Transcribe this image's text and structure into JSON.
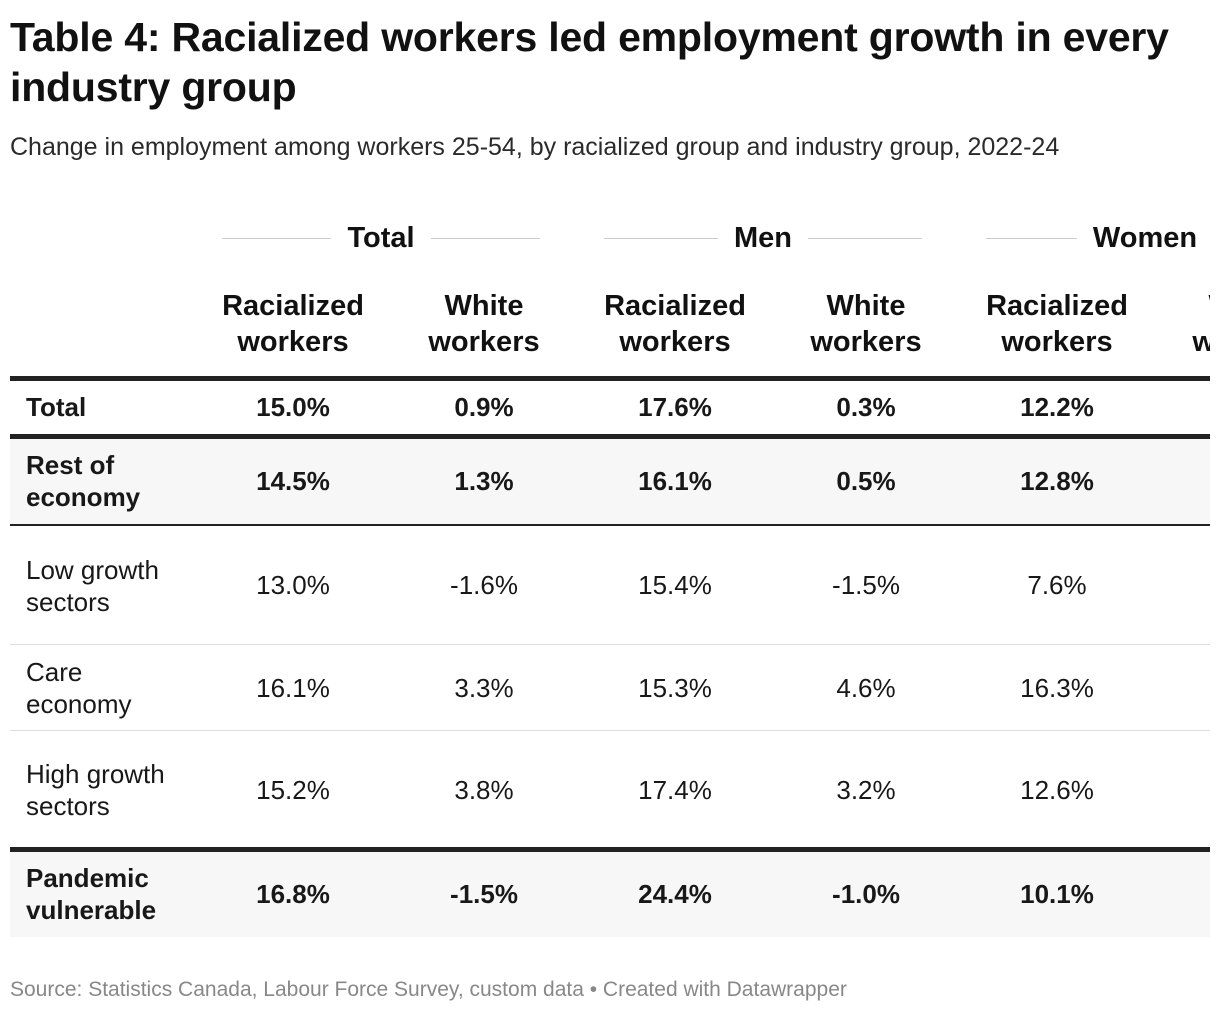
{
  "chart_data": {
    "type": "table",
    "title": "Table 4: Racialized workers led employment growth in every industry group",
    "subtitle": "Change in employment among workers 25-54, by racialized group and industry group, 2022-24",
    "groups": [
      "Total",
      "Men",
      "Women"
    ],
    "columns": [
      {
        "group": "Total",
        "label": "Racialized workers"
      },
      {
        "group": "Total",
        "label": "White workers"
      },
      {
        "group": "Men",
        "label": "Racialized workers"
      },
      {
        "group": "Men",
        "label": "White workers"
      },
      {
        "group": "Women",
        "label": "Racialized workers"
      },
      {
        "group": "Women",
        "label": "White workers"
      }
    ],
    "rows": [
      {
        "label": "Total",
        "bold": true,
        "values": [
          "15.0%",
          "0.9%",
          "17.6%",
          "0.3%",
          "12.2%",
          null
        ]
      },
      {
        "label": "Rest of economy",
        "bold": true,
        "values": [
          "14.5%",
          "1.3%",
          "16.1%",
          "0.5%",
          "12.8%",
          null
        ]
      },
      {
        "label": "Low growth sectors",
        "bold": false,
        "values": [
          "13.0%",
          "-1.6%",
          "15.4%",
          "-1.5%",
          "7.6%",
          null
        ]
      },
      {
        "label": "Care economy",
        "bold": false,
        "values": [
          "16.1%",
          "3.3%",
          "15.3%",
          "4.6%",
          "16.3%",
          null
        ]
      },
      {
        "label": "High growth sectors",
        "bold": false,
        "values": [
          "15.2%",
          "3.8%",
          "17.4%",
          "3.2%",
          "12.6%",
          null
        ]
      },
      {
        "label": "Pandemic vulnerable",
        "bold": true,
        "values": [
          "16.8%",
          "-1.5%",
          "24.4%",
          "-1.0%",
          "10.1%",
          null
        ]
      }
    ],
    "source": "Source: Statistics Canada, Labour Force Survey, custom data • Created with Datawrapper"
  }
}
